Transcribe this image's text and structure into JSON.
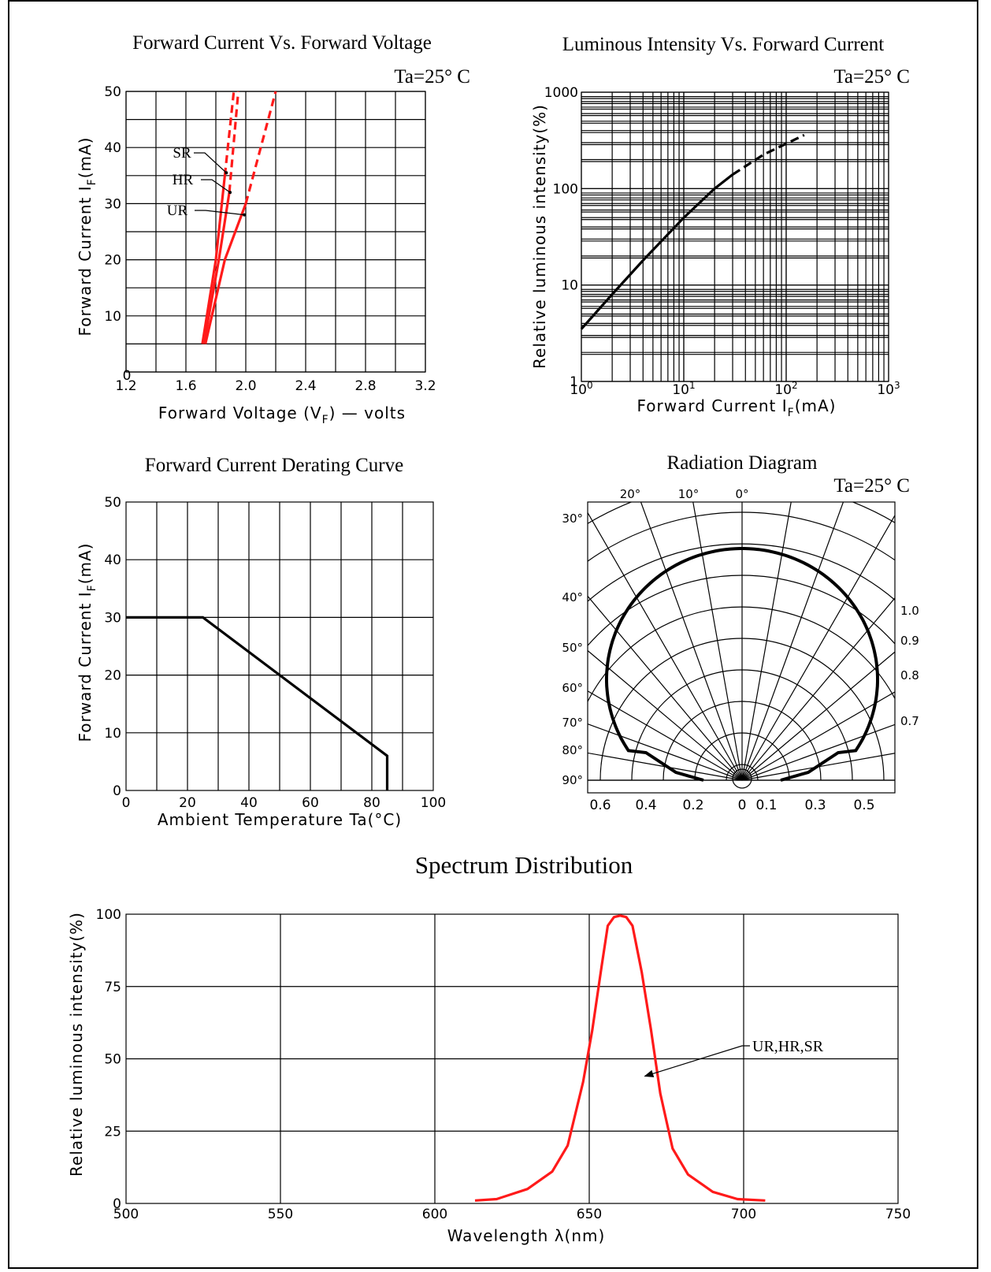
{
  "chart_data": [
    {
      "id": "vf",
      "type": "line",
      "title": "Forward Current Vs. Forward Voltage",
      "condition": "Ta=25° C",
      "xlabel": "Forward Voltage (V",
      "xlabel_sub": "F",
      "xlabel_suffix": ")  — volts",
      "ylabel": "Forward Current I",
      "ylabel_sub": "F",
      "ylabel_suffix": "(mA)",
      "xlim": [
        1.2,
        3.2
      ],
      "ylim": [
        0,
        50
      ],
      "x_ticks": [
        "1.2",
        "1.6",
        "2.0",
        "2.4",
        "2.8",
        "3.2"
      ],
      "y_ticks": [
        "10",
        "20",
        "30",
        "40",
        "50"
      ],
      "y_zero_label": "0",
      "series_color": "#ff1a1a",
      "series": [
        {
          "name": "SR",
          "solid": [
            [
              1.71,
              5
            ],
            [
              1.8,
              20
            ],
            [
              1.86,
              35
            ]
          ],
          "dashed": [
            [
              1.86,
              35
            ],
            [
              1.92,
              50
            ]
          ]
        },
        {
          "name": "HR",
          "solid": [
            [
              1.72,
              5
            ],
            [
              1.82,
              20
            ],
            [
              1.89,
              32
            ]
          ],
          "dashed": [
            [
              1.89,
              32
            ],
            [
              1.95,
              50
            ]
          ]
        },
        {
          "name": "UR",
          "solid": [
            [
              1.73,
              5
            ],
            [
              1.86,
              20
            ],
            [
              2.0,
              30
            ]
          ],
          "dashed": [
            [
              2.0,
              30
            ],
            [
              2.1,
              40
            ],
            [
              2.2,
              50
            ]
          ]
        }
      ]
    },
    {
      "id": "iv",
      "type": "line",
      "scale": "log-log",
      "title": "Luminous Intensity Vs. Forward Current",
      "condition": "Ta=25° C",
      "xlabel": "Forward  Current  I",
      "xlabel_sub": "F",
      "xlabel_suffix": "(mA)",
      "ylabel": "Relative luminous intensity(%)",
      "xlim": [
        1,
        1000
      ],
      "ylim": [
        1,
        1000
      ],
      "x_ticks": [
        {
          "base": "10",
          "exp": "0"
        },
        {
          "base": "10",
          "exp": "1"
        },
        {
          "base": "10",
          "exp": "2"
        },
        {
          "base": "10",
          "exp": "3"
        }
      ],
      "y_ticks": [
        "1",
        "10",
        "100",
        "1000"
      ],
      "series_color": "#000000",
      "series": [
        {
          "solid": [
            [
              1,
              3.5
            ],
            [
              2,
              8
            ],
            [
              4,
              18
            ],
            [
              10,
              50
            ],
            [
              20,
              100
            ],
            [
              30,
              140
            ]
          ],
          "dashed": [
            [
              30,
              140
            ],
            [
              60,
              225
            ],
            [
              150,
              360
            ]
          ]
        }
      ]
    },
    {
      "id": "derating",
      "type": "line",
      "title": "Forward Current Derating Curve",
      "xlabel": "Ambient  Temperature  Ta(°C)",
      "ylabel": "Forward Current I",
      "ylabel_sub": "F",
      "ylabel_suffix": "(mA)",
      "xlim": [
        0,
        100
      ],
      "ylim": [
        0,
        50
      ],
      "x_ticks": [
        "0",
        "20",
        "40",
        "60",
        "80",
        "100"
      ],
      "y_ticks": [
        "0",
        "10",
        "20",
        "30",
        "40",
        "50"
      ],
      "series_color": "#000000",
      "series": [
        {
          "points": [
            [
              0,
              30
            ],
            [
              25,
              30
            ],
            [
              85,
              6
            ],
            [
              85,
              0
            ]
          ]
        }
      ]
    },
    {
      "id": "radiation",
      "type": "polar",
      "title": "Radiation Diagram",
      "condition": "Ta=25° C",
      "angle_labels_top": [
        "20°",
        "10°",
        "0°"
      ],
      "angle_labels_left": [
        "30°",
        "40°",
        "50°",
        "60°",
        "70°",
        "80°",
        "90°"
      ],
      "right_labels": [
        "1.0",
        "0.9",
        "0.8",
        "0.7"
      ],
      "bottom_labels": [
        "0.6",
        "0.4",
        "0.2",
        "0",
        "0.1",
        "0.3",
        "0.5"
      ],
      "curve_color": "#000000"
    },
    {
      "id": "spectrum",
      "type": "line",
      "title": "Spectrum Distribution",
      "xlabel": "Wavelength  λ(nm)",
      "ylabel": "Relative luminous intensity(%)",
      "xlim": [
        500,
        750
      ],
      "ylim": [
        0,
        100
      ],
      "x_ticks": [
        "500",
        "550",
        "600",
        "650",
        "700",
        "750"
      ],
      "y_ticks": [
        "0",
        "25",
        "50",
        "75",
        "100"
      ],
      "annotation": "UR,HR,SR",
      "series_color": "#ff1a1a",
      "series": [
        {
          "name": "UR,HR,SR",
          "points": [
            [
              613,
              1
            ],
            [
              620,
              1.5
            ],
            [
              630,
              5
            ],
            [
              638,
              11
            ],
            [
              643,
              20
            ],
            [
              648,
              42
            ],
            [
              651,
              60
            ],
            [
              654,
              82
            ],
            [
              656,
              96
            ],
            [
              658,
              99
            ],
            [
              660,
              99.5
            ],
            [
              662,
              99
            ],
            [
              664,
              96
            ],
            [
              667,
              80
            ],
            [
              670,
              60
            ],
            [
              673,
              38
            ],
            [
              677,
              19
            ],
            [
              682,
              10
            ],
            [
              690,
              4
            ],
            [
              698,
              1.5
            ],
            [
              707,
              1
            ]
          ]
        }
      ]
    }
  ]
}
